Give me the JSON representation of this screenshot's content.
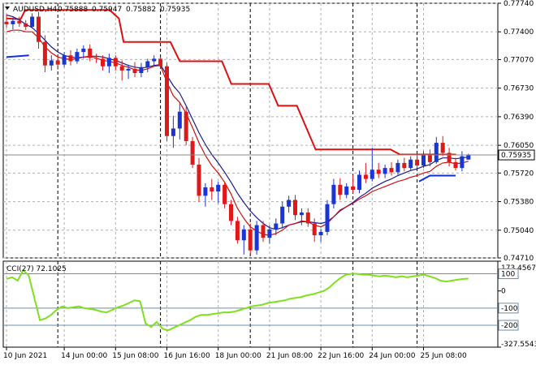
{
  "chart_data": [
    {
      "type": "candlestick",
      "symbol": "AUDUSD,H4",
      "ohlc_header": [
        "0.75888",
        "0.75947",
        "0.75882",
        "0.75935"
      ],
      "current_price": 0.75935,
      "current_price_label": "0.75935",
      "ylim": [
        0.7471,
        0.7774
      ],
      "y_ticks": [
        "0.77740",
        "0.77400",
        "0.77070",
        "0.76730",
        "0.76390",
        "0.76050",
        "0.75720",
        "0.75380",
        "0.75040",
        "0.74710"
      ],
      "y_tick_values": [
        0.7774,
        0.774,
        0.7707,
        0.7673,
        0.7639,
        0.7605,
        0.7572,
        0.7538,
        0.7504,
        0.7471
      ],
      "x_ticks": [
        "10 Jun 2021",
        "14 Jun 00:00",
        "15 Jun 08:00",
        "16 Jun 16:00",
        "18 Jun 00:00",
        "21 Jun 08:00",
        "22 Jun 16:00",
        "24 Jun 00:00",
        "25 Jun 08:00"
      ],
      "x_tick_index": [
        0,
        9,
        17,
        25,
        33,
        41,
        49,
        57,
        65
      ],
      "session_dividers_index": [
        8,
        24,
        38,
        54,
        64
      ],
      "grid": true,
      "candles": [
        [
          0.7752,
          0.7761,
          0.7745,
          0.7749
        ],
        [
          0.7749,
          0.7757,
          0.7743,
          0.7753
        ],
        [
          0.7753,
          0.7758,
          0.7746,
          0.775
        ],
        [
          0.775,
          0.7754,
          0.7742,
          0.7746
        ],
        [
          0.7746,
          0.7762,
          0.7744,
          0.7758
        ],
        [
          0.7758,
          0.7764,
          0.772,
          0.7728
        ],
        [
          0.7728,
          0.7736,
          0.7692,
          0.77
        ],
        [
          0.77,
          0.7712,
          0.7694,
          0.7706
        ],
        [
          0.7706,
          0.7712,
          0.7695,
          0.7701
        ],
        [
          0.7701,
          0.7716,
          0.7698,
          0.7712
        ],
        [
          0.7712,
          0.7718,
          0.77,
          0.7705
        ],
        [
          0.7705,
          0.772,
          0.7702,
          0.7716
        ],
        [
          0.7716,
          0.7724,
          0.7708,
          0.772
        ],
        [
          0.772,
          0.7725,
          0.7705,
          0.7709
        ],
        [
          0.7709,
          0.7714,
          0.7703,
          0.7708
        ],
        [
          0.7708,
          0.7712,
          0.7694,
          0.7699
        ],
        [
          0.7699,
          0.7714,
          0.7691,
          0.7709
        ],
        [
          0.7709,
          0.7712,
          0.7694,
          0.7699
        ],
        [
          0.7699,
          0.7706,
          0.7682,
          0.7694
        ],
        [
          0.7694,
          0.7701,
          0.7684,
          0.7696
        ],
        [
          0.7696,
          0.7704,
          0.7686,
          0.7691
        ],
        [
          0.7691,
          0.7703,
          0.7686,
          0.7698
        ],
        [
          0.7698,
          0.7708,
          0.7692,
          0.7705
        ],
        [
          0.7705,
          0.7712,
          0.77,
          0.7708
        ],
        [
          0.7708,
          0.771,
          0.7696,
          0.7699
        ],
        [
          0.7699,
          0.7703,
          0.761,
          0.7616
        ],
        [
          0.7616,
          0.764,
          0.7602,
          0.7625
        ],
        [
          0.7625,
          0.7655,
          0.7612,
          0.7645
        ],
        [
          0.7645,
          0.7652,
          0.7605,
          0.761
        ],
        [
          0.761,
          0.7615,
          0.7578,
          0.7582
        ],
        [
          0.7582,
          0.759,
          0.7538,
          0.7545
        ],
        [
          0.7545,
          0.756,
          0.7532,
          0.7555
        ],
        [
          0.7555,
          0.7565,
          0.754,
          0.755
        ],
        [
          0.755,
          0.7562,
          0.7536,
          0.7558
        ],
        [
          0.7558,
          0.7562,
          0.753,
          0.7535
        ],
        [
          0.7535,
          0.754,
          0.751,
          0.7515
        ],
        [
          0.7515,
          0.752,
          0.7488,
          0.7492
        ],
        [
          0.7492,
          0.751,
          0.7475,
          0.7505
        ],
        [
          0.7505,
          0.7512,
          0.7476,
          0.748
        ],
        [
          0.748,
          0.7515,
          0.7475,
          0.751
        ],
        [
          0.751,
          0.7515,
          0.749,
          0.7495
        ],
        [
          0.7495,
          0.751,
          0.7488,
          0.7505
        ],
        [
          0.7505,
          0.7518,
          0.7498,
          0.7512
        ],
        [
          0.7512,
          0.7538,
          0.7506,
          0.7532
        ],
        [
          0.7532,
          0.7545,
          0.7525,
          0.754
        ],
        [
          0.754,
          0.7546,
          0.7516,
          0.7522
        ],
        [
          0.7522,
          0.753,
          0.751,
          0.7525
        ],
        [
          0.7525,
          0.753,
          0.7508,
          0.7512
        ],
        [
          0.7512,
          0.7518,
          0.749,
          0.7498
        ],
        [
          0.7498,
          0.7505,
          0.749,
          0.7502
        ],
        [
          0.7502,
          0.754,
          0.7498,
          0.7535
        ],
        [
          0.7535,
          0.7565,
          0.753,
          0.7558
        ],
        [
          0.7558,
          0.7566,
          0.754,
          0.7546
        ],
        [
          0.7546,
          0.756,
          0.7542,
          0.7556
        ],
        [
          0.7556,
          0.757,
          0.7548,
          0.7552
        ],
        [
          0.7552,
          0.7575,
          0.7548,
          0.757
        ],
        [
          0.757,
          0.7584,
          0.756,
          0.7565
        ],
        [
          0.7565,
          0.7602,
          0.7562,
          0.7576
        ],
        [
          0.7576,
          0.7584,
          0.7566,
          0.7571
        ],
        [
          0.7571,
          0.7582,
          0.7566,
          0.7578
        ],
        [
          0.7578,
          0.7585,
          0.7569,
          0.7573
        ],
        [
          0.7573,
          0.7588,
          0.757,
          0.7584
        ],
        [
          0.7584,
          0.759,
          0.7574,
          0.7578
        ],
        [
          0.7578,
          0.7592,
          0.7575,
          0.7588
        ],
        [
          0.7588,
          0.7595,
          0.7578,
          0.7581
        ],
        [
          0.7581,
          0.7598,
          0.7578,
          0.7594
        ],
        [
          0.7594,
          0.76,
          0.758,
          0.7585
        ],
        [
          0.7585,
          0.7615,
          0.7583,
          0.7608
        ],
        [
          0.7608,
          0.7616,
          0.7592,
          0.7596
        ],
        [
          0.7596,
          0.7602,
          0.758,
          0.7585
        ],
        [
          0.7585,
          0.759,
          0.7575,
          0.7578
        ],
        [
          0.7578,
          0.7598,
          0.7574,
          0.7592
        ],
        [
          0.7588,
          0.7595,
          0.7588,
          0.7594
        ]
      ],
      "resistance_line": [
        [
          0,
          0.7756
        ],
        [
          3,
          0.7755
        ],
        [
          4,
          0.7766
        ],
        [
          22,
          0.7766
        ],
        [
          24,
          0.7756
        ],
        [
          25,
          0.7728
        ],
        [
          35,
          0.7728
        ],
        [
          37,
          0.7705
        ],
        [
          46,
          0.7705
        ],
        [
          48,
          0.7678
        ],
        [
          56,
          0.7678
        ],
        [
          58,
          0.7652
        ],
        [
          62,
          0.7652
        ],
        [
          66,
          0.76
        ],
        [
          82,
          0.76
        ],
        [
          84,
          0.7594
        ],
        [
          94,
          0.7594
        ],
        [
          96,
          0.7594
        ]
      ],
      "support_line": [
        [
          0,
          0.771
        ],
        [
          3,
          0.7712
        ],
        [
          93,
          0.7562
        ],
        [
          96,
          0.7569
        ],
        [
          100,
          0.7569
        ]
      ],
      "ma_slow": [
        0.776,
        0.7758,
        0.7754,
        0.7749,
        0.7745,
        0.7738,
        0.773,
        0.7722,
        0.7716,
        0.7712,
        0.771,
        0.7709,
        0.771,
        0.7711,
        0.7711,
        0.771,
        0.7708,
        0.7706,
        0.7703,
        0.77,
        0.7698,
        0.7697,
        0.7698,
        0.77,
        0.7701,
        0.7688,
        0.7676,
        0.7667,
        0.7652,
        0.7636,
        0.762,
        0.7606,
        0.7594,
        0.7584,
        0.7573,
        0.7561,
        0.7548,
        0.7537,
        0.7527,
        0.7519,
        0.7512,
        0.7507,
        0.7505,
        0.7507,
        0.751,
        0.7512,
        0.7514,
        0.7514,
        0.7513,
        0.7512,
        0.7514,
        0.752,
        0.7527,
        0.7532,
        0.7537,
        0.7543,
        0.7548,
        0.7554,
        0.7558,
        0.7562,
        0.7565,
        0.7569,
        0.7572,
        0.7575,
        0.7577,
        0.758,
        0.7582,
        0.7587,
        0.759,
        0.759,
        0.7589,
        0.759,
        0.7591
      ],
      "ma_fast": [
        0.774,
        0.7742,
        0.7742,
        0.774,
        0.774,
        0.7733,
        0.7722,
        0.7715,
        0.771,
        0.7708,
        0.7707,
        0.7708,
        0.771,
        0.771,
        0.7709,
        0.7706,
        0.7705,
        0.7703,
        0.77,
        0.7698,
        0.7695,
        0.7694,
        0.7696,
        0.7699,
        0.77,
        0.768,
        0.7664,
        0.7656,
        0.7643,
        0.7626,
        0.7608,
        0.7593,
        0.7581,
        0.7572,
        0.7561,
        0.7547,
        0.753,
        0.7518,
        0.7508,
        0.7503,
        0.7499,
        0.7498,
        0.75,
        0.7504,
        0.751,
        0.7512,
        0.7515,
        0.7514,
        0.751,
        0.7508,
        0.7512,
        0.752,
        0.7528,
        0.7532,
        0.7536,
        0.7541,
        0.7545,
        0.755,
        0.7553,
        0.7556,
        0.7559,
        0.7562,
        0.7564,
        0.7567,
        0.7569,
        0.7572,
        0.7574,
        0.758,
        0.7584,
        0.7585,
        0.7583,
        0.7584,
        0.7586
      ]
    },
    {
      "type": "line",
      "indicator_label": "CCI(27) 72.1025",
      "ylim": [
        -327.5543,
        173.4567
      ],
      "y_ticks": [
        "173.4567",
        "100",
        "0",
        "-100",
        "-200",
        "-327.5543"
      ],
      "y_tick_values": [
        173.4567,
        100,
        0,
        -100,
        -200,
        -327.5543
      ],
      "boxed_ticks": [
        "100",
        "-100",
        "-200"
      ],
      "level_lines": [
        100,
        -100,
        -200
      ],
      "values": [
        70,
        80,
        60,
        120,
        90,
        -40,
        -170,
        -160,
        -140,
        -110,
        -90,
        -100,
        -95,
        -90,
        -100,
        -105,
        -110,
        -120,
        -125,
        -110,
        -95,
        -85,
        -70,
        -55,
        -60,
        -190,
        -210,
        -180,
        -220,
        -230,
        -215,
        -200,
        -185,
        -170,
        -150,
        -140,
        -140,
        -135,
        -130,
        -125,
        -125,
        -120,
        -110,
        -100,
        -90,
        -85,
        -80,
        -70,
        -65,
        -60,
        -55,
        -45,
        -40,
        -35,
        -25,
        -20,
        -10,
        0,
        20,
        50,
        75,
        95,
        100,
        100,
        95,
        95,
        90,
        85,
        90,
        85,
        80,
        85,
        80,
        85,
        90,
        95,
        85,
        75,
        60,
        55,
        60,
        65,
        70,
        72
      ]
    }
  ]
}
